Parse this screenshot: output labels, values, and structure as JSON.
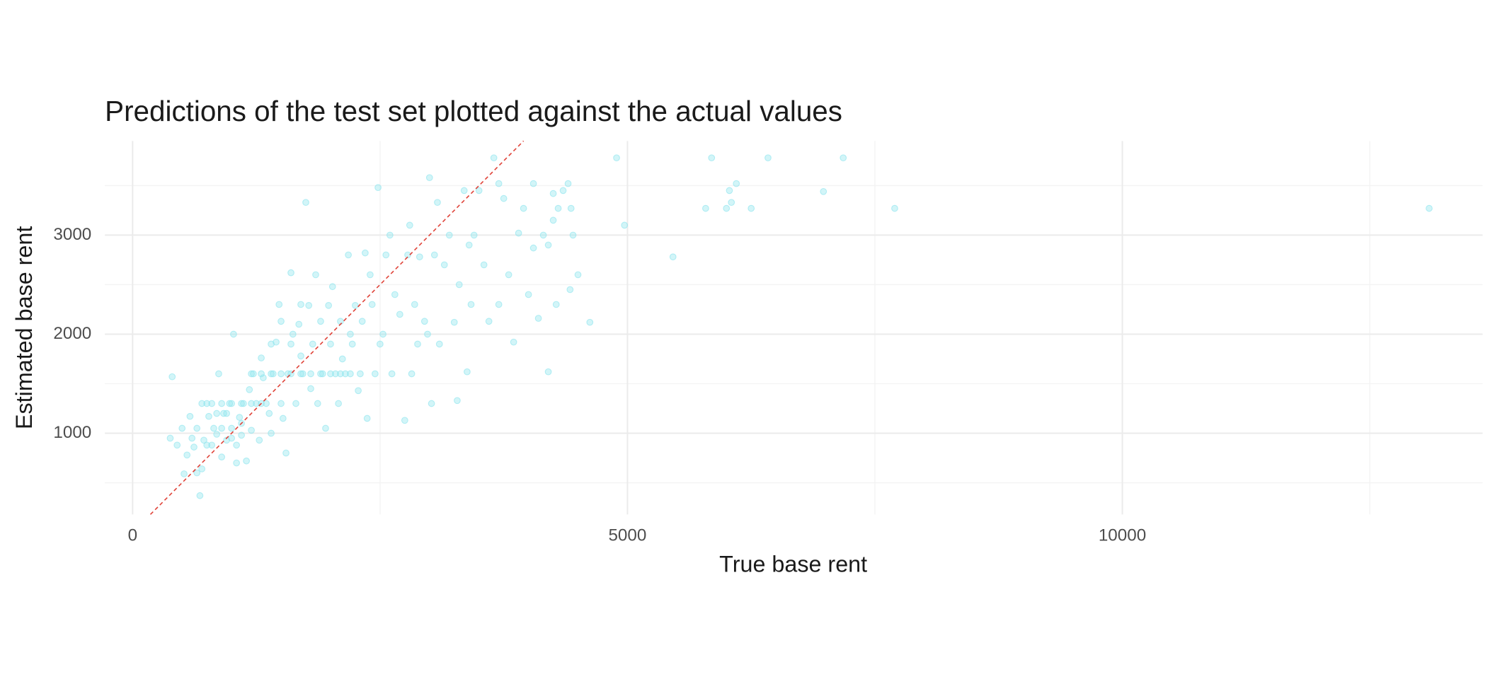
{
  "chart_data": {
    "type": "scatter",
    "title": "Predictions of the test set plotted against the actual values",
    "xlabel": "True base rent",
    "ylabel": "Estimated base rent",
    "color": "#8ee5ee",
    "opacity": 0.4,
    "xlim": [
      -280,
      13640
    ],
    "ylim": [
      180,
      3950
    ],
    "xticks": [
      0,
      5000,
      10000
    ],
    "yticks": [
      1000,
      2000,
      3000
    ],
    "x_minor_ticks": [
      2500,
      7500,
      12500
    ],
    "y_minor_ticks": [
      500,
      1500,
      2500,
      3500
    ],
    "grid": true,
    "diagonal": {
      "color": "#e0443a",
      "dashed": true
    },
    "x": [
      380,
      400,
      450,
      500,
      520,
      550,
      580,
      600,
      620,
      650,
      680,
      700,
      720,
      750,
      770,
      800,
      820,
      850,
      870,
      900,
      920,
      950,
      980,
      1000,
      1020,
      1050,
      1080,
      1100,
      1120,
      1150,
      1180,
      1200,
      1220,
      1250,
      1280,
      1300,
      1320,
      1350,
      1380,
      1400,
      1420,
      1450,
      1480,
      1500,
      1520,
      1550,
      1570,
      1600,
      1620,
      1650,
      1680,
      1700,
      1720,
      1750,
      1780,
      1800,
      1820,
      1850,
      1870,
      1900,
      1920,
      1950,
      1980,
      2000,
      2020,
      2050,
      2080,
      2100,
      2120,
      2150,
      2180,
      2200,
      2220,
      2250,
      2280,
      2300,
      2320,
      2350,
      2370,
      2400,
      2420,
      2450,
      2480,
      2500,
      2530,
      2560,
      2600,
      2620,
      2650,
      2700,
      2750,
      2780,
      2800,
      2820,
      2850,
      2880,
      2900,
      2950,
      2980,
      3000,
      3020,
      3050,
      3080,
      3100,
      3150,
      3200,
      3250,
      3280,
      3300,
      3350,
      3380,
      3400,
      3420,
      3450,
      3500,
      3550,
      3600,
      3650,
      3700,
      3750,
      3800,
      3850,
      3900,
      3950,
      4000,
      4050,
      4100,
      4150,
      4200,
      4250,
      4200,
      4250,
      4280,
      4300,
      4350,
      4400,
      4420,
      4450,
      4500,
      4430,
      4620,
      4050,
      3700,
      4890,
      4970,
      5460,
      5790,
      5850,
      6030,
      6100,
      6050,
      6000,
      6420,
      6250,
      7180,
      6980,
      7700,
      13100,
      700,
      800,
      900,
      1000,
      1100,
      1200,
      1300,
      1400,
      1500,
      1600,
      1700,
      1800,
      1900,
      2000,
      2100,
      2200,
      1400,
      1500,
      1600,
      1700,
      900,
      1000,
      1100,
      1200,
      1300,
      1050,
      950,
      850,
      750,
      650
    ],
    "y": [
      950,
      1570,
      880,
      1050,
      590,
      780,
      1170,
      950,
      860,
      1050,
      370,
      640,
      930,
      1300,
      1170,
      880,
      1050,
      990,
      1600,
      760,
      1200,
      930,
      1300,
      1050,
      2000,
      880,
      1160,
      980,
      1300,
      720,
      1440,
      1030,
      1600,
      1300,
      930,
      1760,
      1560,
      1300,
      1200,
      1000,
      1600,
      1920,
      2300,
      1300,
      1150,
      800,
      1600,
      2620,
      2000,
      1300,
      2100,
      1780,
      1600,
      3330,
      2290,
      1450,
      1900,
      2600,
      1300,
      2130,
      1600,
      1050,
      2290,
      1900,
      2480,
      1600,
      1300,
      2130,
      1750,
      1600,
      2800,
      2000,
      1900,
      2290,
      1430,
      1600,
      2130,
      2820,
      1150,
      2600,
      2300,
      1600,
      3480,
      1900,
      2000,
      2800,
      3000,
      1600,
      2400,
      2200,
      1130,
      2800,
      3100,
      1600,
      2300,
      1900,
      2780,
      2130,
      2000,
      3580,
      1300,
      2800,
      3330,
      1900,
      2700,
      3000,
      2120,
      1330,
      2500,
      3450,
      1620,
      2900,
      2300,
      3000,
      3450,
      2700,
      2130,
      3780,
      2300,
      3370,
      2600,
      1920,
      3020,
      3270,
      2400,
      3520,
      2160,
      3000,
      1620,
      3150,
      2900,
      3420,
      2300,
      3270,
      3450,
      3520,
      2450,
      3000,
      2600,
      3270,
      2120,
      2870,
      3520,
      3780,
      3100,
      2780,
      3270,
      3780,
      3450,
      3520,
      3330,
      3270,
      3780,
      3270,
      3780,
      3440,
      3270,
      3270,
      1300,
      1300,
      1300,
      1300,
      1300,
      1600,
      1600,
      1600,
      1600,
      1600,
      1600,
      1600,
      1600,
      1600,
      1600,
      1600,
      1900,
      2130,
      1900,
      2300,
      1050,
      950,
      1100,
      1300,
      1300,
      700,
      1200,
      1200,
      880,
      600
    ]
  }
}
